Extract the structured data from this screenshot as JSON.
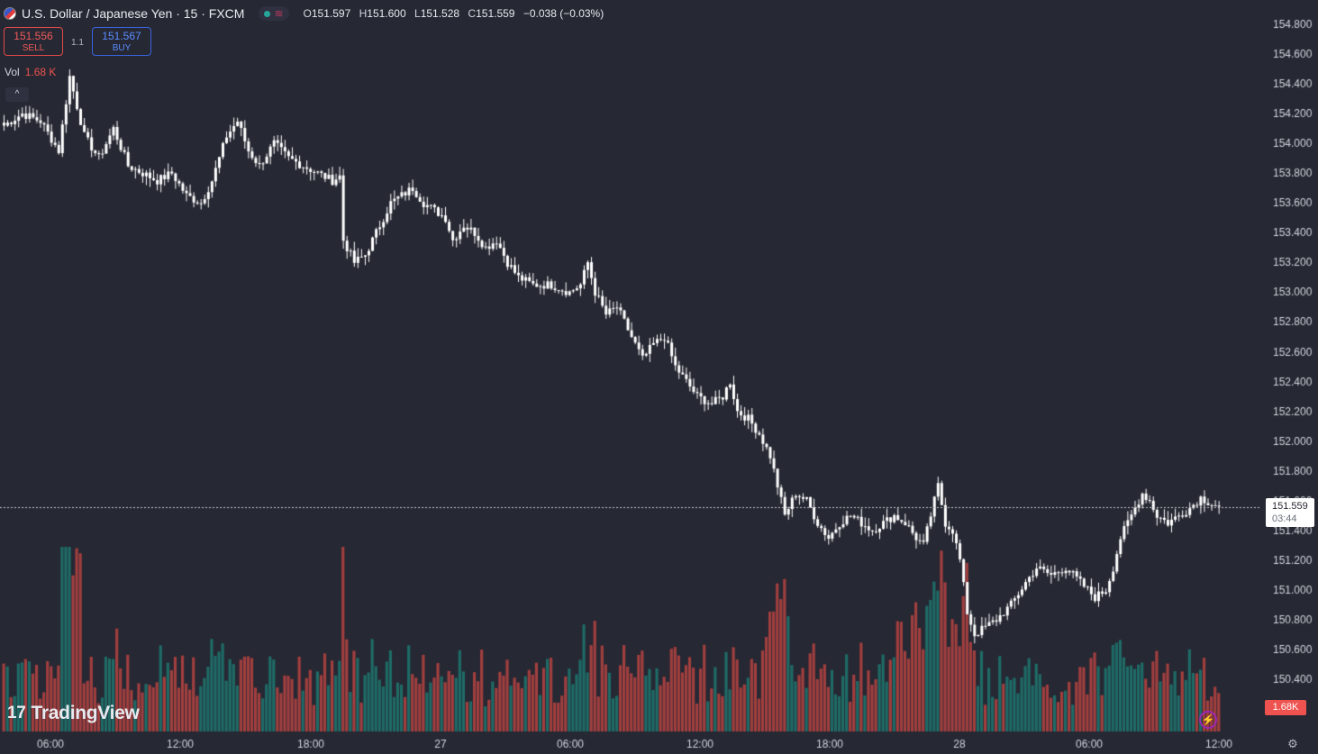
{
  "header": {
    "symbol_title": "U.S. Dollar / Japanese Yen · 15 · FXCM",
    "open_label": "O",
    "open": "151.597",
    "high_label": "H",
    "high": "151.600",
    "low_label": "L",
    "low": "151.528",
    "close_label": "C",
    "close": "151.559",
    "change": "−0.038 (−0.03%)"
  },
  "trade": {
    "sell_price": "151.556",
    "sell_label": "SELL",
    "spread": "1.1",
    "buy_price": "151.567",
    "buy_label": "BUY"
  },
  "volume_legend": {
    "label": "Vol",
    "value": "1.68 K"
  },
  "branding": {
    "logo_text": "TradingView",
    "logo_mark": "17"
  },
  "price_label": {
    "price": "151.559",
    "countdown": "03:44"
  },
  "volume_label": "1.68K",
  "colors": {
    "up": "#26a69a",
    "down": "#ef5350",
    "candle": "#ffffff",
    "background": "#262833",
    "axis_text": "#d1d4dc"
  },
  "icons": [
    "us-japan-flag-icon",
    "status-dot-icon",
    "wave-icon",
    "chevron-up-icon",
    "bolt-icon",
    "gear-icon"
  ],
  "chart_data": {
    "type": "candlestick",
    "y_axis": {
      "min": 150.2,
      "max": 154.9,
      "ticks": [
        "154.800",
        "154.600",
        "154.400",
        "154.200",
        "154.000",
        "153.800",
        "153.600",
        "153.400",
        "153.200",
        "153.000",
        "152.800",
        "152.600",
        "152.400",
        "152.200",
        "152.000",
        "151.800",
        "151.600",
        "151.400",
        "151.200",
        "151.000",
        "150.800",
        "150.600",
        "150.400"
      ]
    },
    "x_axis": {
      "ticks": [
        "06:00",
        "12:00",
        "18:00",
        "27",
        "06:00",
        "12:00",
        "18:00",
        "28",
        "06:00",
        "12:00"
      ]
    },
    "last_price": 151.559,
    "close_path_anchors": [
      [
        0,
        154.12
      ],
      [
        5,
        154.2
      ],
      [
        10,
        154.15
      ],
      [
        15,
        153.95
      ],
      [
        18,
        154.45
      ],
      [
        22,
        154.05
      ],
      [
        26,
        153.9
      ],
      [
        30,
        154.1
      ],
      [
        34,
        153.85
      ],
      [
        38,
        153.8
      ],
      [
        42,
        153.75
      ],
      [
        46,
        153.8
      ],
      [
        50,
        153.65
      ],
      [
        54,
        153.6
      ],
      [
        57,
        153.75
      ],
      [
        61,
        154.05
      ],
      [
        64,
        154.15
      ],
      [
        67,
        153.95
      ],
      [
        70,
        153.85
      ],
      [
        74,
        154.0
      ],
      [
        78,
        153.9
      ],
      [
        82,
        153.85
      ],
      [
        86,
        153.8
      ],
      [
        90,
        153.75
      ],
      [
        92,
        153.78
      ],
      [
        93,
        153.35
      ],
      [
        96,
        153.2
      ],
      [
        99,
        153.25
      ],
      [
        102,
        153.4
      ],
      [
        104,
        153.5
      ],
      [
        106,
        153.6
      ],
      [
        109,
        153.65
      ],
      [
        112,
        153.7
      ],
      [
        115,
        153.6
      ],
      [
        118,
        153.55
      ],
      [
        121,
        153.5
      ],
      [
        123,
        153.35
      ],
      [
        126,
        153.45
      ],
      [
        129,
        153.4
      ],
      [
        132,
        153.3
      ],
      [
        135,
        153.35
      ],
      [
        138,
        153.2
      ],
      [
        141,
        153.1
      ],
      [
        145,
        153.05
      ],
      [
        150,
        153.05
      ],
      [
        155,
        153.0
      ],
      [
        158,
        153.05
      ],
      [
        160,
        153.2
      ],
      [
        162,
        153.0
      ],
      [
        165,
        152.85
      ],
      [
        168,
        152.9
      ],
      [
        172,
        152.7
      ],
      [
        175,
        152.55
      ],
      [
        178,
        152.65
      ],
      [
        181,
        152.7
      ],
      [
        184,
        152.5
      ],
      [
        187,
        152.4
      ],
      [
        190,
        152.3
      ],
      [
        194,
        152.25
      ],
      [
        197,
        152.3
      ],
      [
        199,
        152.4
      ],
      [
        201,
        152.2
      ],
      [
        204,
        152.15
      ],
      [
        207,
        152.05
      ],
      [
        210,
        151.9
      ],
      [
        212,
        151.7
      ],
      [
        214,
        151.5
      ],
      [
        217,
        151.65
      ],
      [
        220,
        151.6
      ],
      [
        223,
        151.45
      ],
      [
        226,
        151.35
      ],
      [
        229,
        151.45
      ],
      [
        232,
        151.5
      ],
      [
        235,
        151.45
      ],
      [
        238,
        151.4
      ],
      [
        241,
        151.45
      ],
      [
        244,
        151.5
      ],
      [
        247,
        151.45
      ],
      [
        250,
        151.35
      ],
      [
        252,
        151.3
      ],
      [
        254,
        151.5
      ],
      [
        256,
        151.7
      ],
      [
        258,
        151.45
      ],
      [
        260,
        151.4
      ],
      [
        262,
        151.2
      ],
      [
        264,
        150.85
      ],
      [
        266,
        150.7
      ],
      [
        269,
        150.75
      ],
      [
        272,
        150.8
      ],
      [
        276,
        150.9
      ],
      [
        280,
        151.05
      ],
      [
        283,
        151.15
      ],
      [
        287,
        151.1
      ],
      [
        291,
        151.15
      ],
      [
        295,
        151.05
      ],
      [
        299,
        150.95
      ],
      [
        302,
        151.0
      ],
      [
        304,
        151.15
      ],
      [
        306,
        151.35
      ],
      [
        308,
        151.45
      ],
      [
        310,
        151.55
      ],
      [
        312,
        151.65
      ],
      [
        314,
        151.6
      ],
      [
        316,
        151.5
      ],
      [
        319,
        151.45
      ],
      [
        322,
        151.5
      ],
      [
        325,
        151.55
      ],
      [
        328,
        151.62
      ],
      [
        331,
        151.58
      ],
      [
        333,
        151.56
      ]
    ],
    "volume_note": "volume bars colored by candle direction"
  }
}
